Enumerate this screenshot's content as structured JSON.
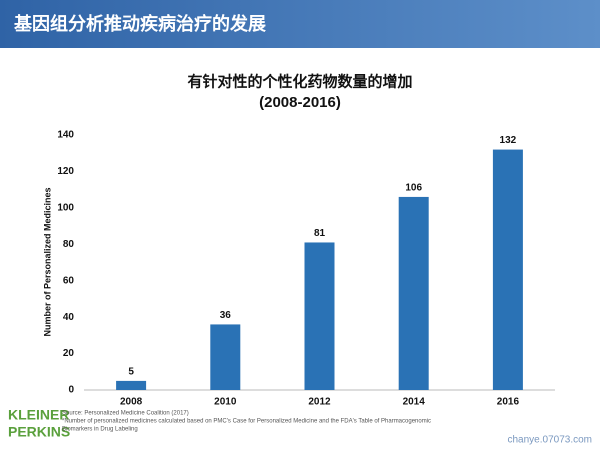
{
  "header": {
    "title": "基因组分析推动疾病治疗的发展"
  },
  "chart_data": {
    "type": "bar",
    "title": "有针对性的个性化药物数量的增加",
    "subtitle": "(2008-2016)",
    "y_label": "Number of Personalized Medicines",
    "categories": [
      "2008",
      "2010",
      "2012",
      "2014",
      "2016"
    ],
    "values": [
      5,
      36,
      81,
      106,
      132
    ],
    "color": "#2a72b5",
    "ylim": [
      0,
      140
    ],
    "yticks": [
      0,
      20,
      40,
      60,
      80,
      100,
      120,
      140
    ],
    "grid": false
  },
  "footer": {
    "logo": [
      "KLEINER",
      "PERKINS"
    ],
    "source": "Source: Personalized Medicine Coalition (2017)",
    "note": [
      "*Number of personalized medicines calculated based on PMC's Case for Personalized Medicine and the FDA's Table of Pharmacogenomic",
      "Biomarkers in Drug Labeling"
    ]
  },
  "watermark": "chanye.07073.com"
}
